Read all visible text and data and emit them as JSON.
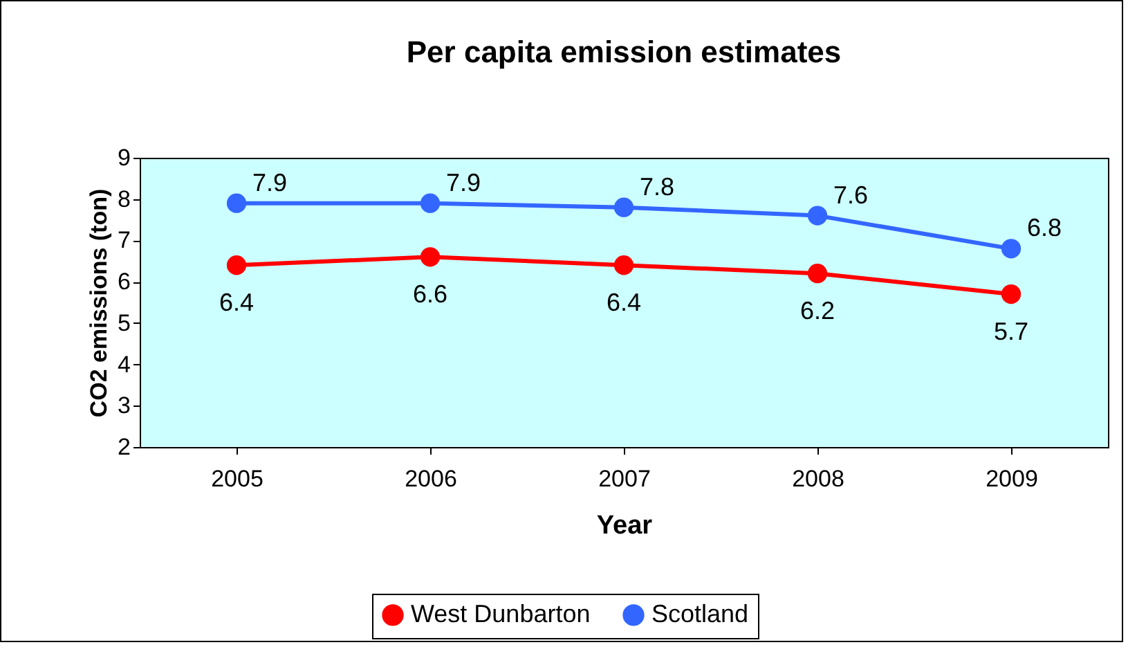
{
  "chart_data": {
    "type": "line",
    "title": "Per capita emission estimates",
    "xlabel": "Year",
    "ylabel": "CO2 emissions (ton)",
    "categories": [
      "2005",
      "2006",
      "2007",
      "2008",
      "2009"
    ],
    "series": [
      {
        "name": "West Dunbarton",
        "color": "#ff0000",
        "values": [
          6.4,
          6.6,
          6.4,
          6.2,
          5.7
        ]
      },
      {
        "name": "Scotland",
        "color": "#3366ff",
        "values": [
          7.9,
          7.9,
          7.8,
          7.6,
          6.8
        ]
      }
    ],
    "ylim": [
      2,
      9
    ],
    "yticks": [
      2,
      3,
      4,
      5,
      6,
      7,
      8,
      9
    ],
    "grid": false,
    "legend": "bottom",
    "marker": "circle",
    "line_style": "solid",
    "data_labels": true
  }
}
